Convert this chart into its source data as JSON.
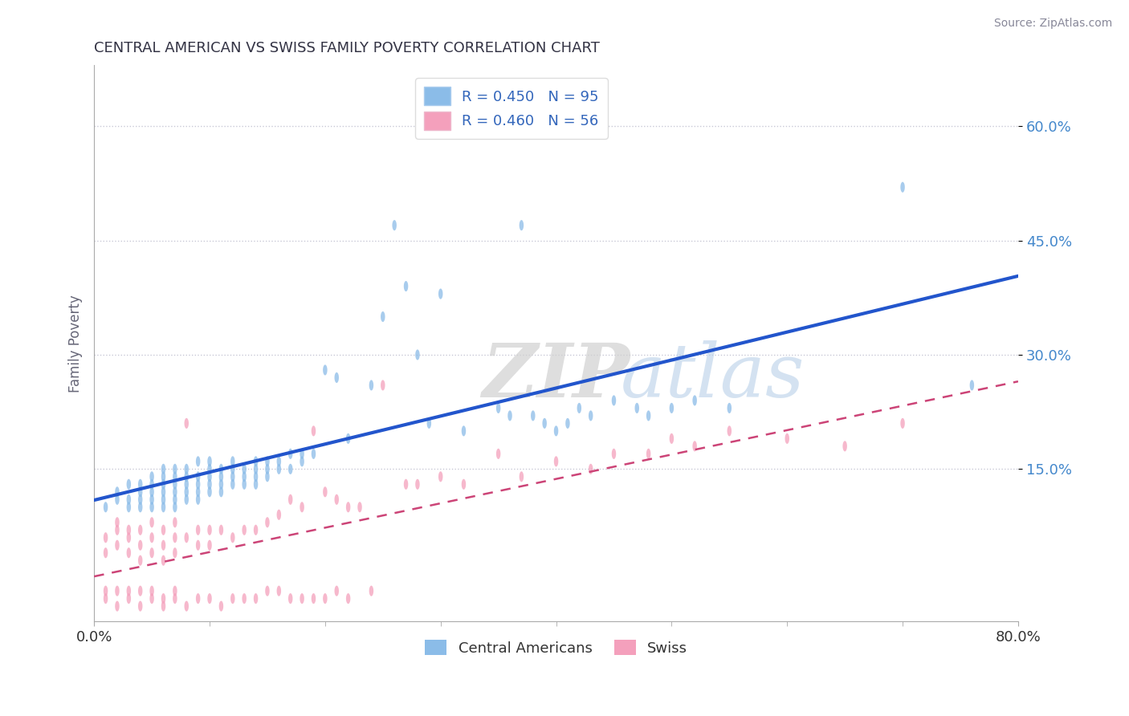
{
  "title": "CENTRAL AMERICAN VS SWISS FAMILY POVERTY CORRELATION CHART",
  "source": "Source: ZipAtlas.com",
  "ylabel": "Family Poverty",
  "xlim": [
    0.0,
    0.8
  ],
  "ylim": [
    -0.05,
    0.68
  ],
  "ytick_positions": [
    0.15,
    0.3,
    0.45,
    0.6
  ],
  "ytick_labels": [
    "15.0%",
    "30.0%",
    "45.0%",
    "60.0%"
  ],
  "blue_color": "#8BBCE8",
  "pink_color": "#F4A0BC",
  "blue_line_color": "#2255CC",
  "pink_line_color": "#CC4477",
  "watermark": "ZIPatlas",
  "legend_labels_bottom": [
    "Central Americans",
    "Swiss"
  ],
  "blue_R": "0.450",
  "blue_N": "95",
  "pink_R": "0.460",
  "pink_N": "56",
  "grid_color": "#cccccc",
  "title_color": "#333344",
  "axis_label_color": "#666677",
  "blue_scatter_x": [
    0.01,
    0.02,
    0.02,
    0.03,
    0.03,
    0.03,
    0.04,
    0.04,
    0.04,
    0.04,
    0.05,
    0.05,
    0.05,
    0.05,
    0.05,
    0.06,
    0.06,
    0.06,
    0.06,
    0.06,
    0.06,
    0.07,
    0.07,
    0.07,
    0.07,
    0.07,
    0.07,
    0.08,
    0.08,
    0.08,
    0.08,
    0.08,
    0.09,
    0.09,
    0.09,
    0.09,
    0.09,
    0.1,
    0.1,
    0.1,
    0.1,
    0.1,
    0.11,
    0.11,
    0.11,
    0.11,
    0.12,
    0.12,
    0.12,
    0.12,
    0.13,
    0.13,
    0.13,
    0.14,
    0.14,
    0.14,
    0.14,
    0.15,
    0.15,
    0.15,
    0.16,
    0.16,
    0.17,
    0.17,
    0.18,
    0.18,
    0.19,
    0.2,
    0.21,
    0.22,
    0.24,
    0.25,
    0.26,
    0.27,
    0.28,
    0.29,
    0.3,
    0.32,
    0.35,
    0.36,
    0.37,
    0.38,
    0.39,
    0.4,
    0.41,
    0.42,
    0.43,
    0.45,
    0.47,
    0.48,
    0.5,
    0.52,
    0.55,
    0.7,
    0.76
  ],
  "blue_scatter_y": [
    0.1,
    0.11,
    0.12,
    0.1,
    0.11,
    0.13,
    0.1,
    0.11,
    0.12,
    0.13,
    0.1,
    0.11,
    0.12,
    0.13,
    0.14,
    0.1,
    0.11,
    0.12,
    0.13,
    0.14,
    0.15,
    0.1,
    0.11,
    0.12,
    0.13,
    0.14,
    0.15,
    0.11,
    0.12,
    0.13,
    0.14,
    0.15,
    0.11,
    0.12,
    0.13,
    0.14,
    0.16,
    0.12,
    0.13,
    0.14,
    0.15,
    0.16,
    0.12,
    0.13,
    0.14,
    0.15,
    0.13,
    0.14,
    0.15,
    0.16,
    0.13,
    0.14,
    0.15,
    0.13,
    0.14,
    0.15,
    0.16,
    0.14,
    0.15,
    0.16,
    0.15,
    0.16,
    0.15,
    0.17,
    0.16,
    0.17,
    0.17,
    0.28,
    0.27,
    0.19,
    0.26,
    0.35,
    0.47,
    0.39,
    0.3,
    0.21,
    0.38,
    0.2,
    0.23,
    0.22,
    0.47,
    0.22,
    0.21,
    0.2,
    0.21,
    0.23,
    0.22,
    0.24,
    0.23,
    0.22,
    0.23,
    0.24,
    0.23,
    0.52,
    0.26
  ],
  "pink_scatter_x": [
    0.01,
    0.01,
    0.02,
    0.02,
    0.02,
    0.03,
    0.03,
    0.03,
    0.04,
    0.04,
    0.04,
    0.05,
    0.05,
    0.05,
    0.06,
    0.06,
    0.06,
    0.07,
    0.07,
    0.07,
    0.08,
    0.08,
    0.09,
    0.09,
    0.1,
    0.1,
    0.11,
    0.12,
    0.13,
    0.14,
    0.15,
    0.16,
    0.17,
    0.18,
    0.19,
    0.2,
    0.21,
    0.22,
    0.23,
    0.25,
    0.27,
    0.28,
    0.3,
    0.32,
    0.35,
    0.37,
    0.4,
    0.43,
    0.45,
    0.48,
    0.5,
    0.52,
    0.55,
    0.6,
    0.65,
    0.7
  ],
  "pink_scatter_y": [
    0.04,
    0.06,
    0.05,
    0.07,
    0.08,
    0.04,
    0.06,
    0.07,
    0.03,
    0.05,
    0.07,
    0.04,
    0.06,
    0.08,
    0.03,
    0.05,
    0.07,
    0.04,
    0.06,
    0.08,
    0.21,
    0.06,
    0.05,
    0.07,
    0.05,
    0.07,
    0.07,
    0.06,
    0.07,
    0.07,
    0.08,
    0.09,
    0.11,
    0.1,
    0.2,
    0.12,
    0.11,
    0.1,
    0.1,
    0.26,
    0.13,
    0.13,
    0.14,
    0.13,
    0.17,
    0.14,
    0.16,
    0.15,
    0.17,
    0.17,
    0.19,
    0.18,
    0.2,
    0.19,
    0.18,
    0.21
  ],
  "pink_below_zero_x": [
    0.01,
    0.01,
    0.02,
    0.02,
    0.03,
    0.03,
    0.04,
    0.04,
    0.05,
    0.05,
    0.06,
    0.06,
    0.07,
    0.07,
    0.08,
    0.09,
    0.1,
    0.11,
    0.12,
    0.13,
    0.14,
    0.15,
    0.16,
    0.17,
    0.18,
    0.19,
    0.2,
    0.21,
    0.22,
    0.24
  ],
  "pink_below_zero_y": [
    -0.02,
    -0.01,
    -0.03,
    -0.01,
    -0.02,
    -0.01,
    -0.03,
    -0.01,
    -0.02,
    -0.01,
    -0.02,
    -0.03,
    -0.01,
    -0.02,
    -0.03,
    -0.02,
    -0.02,
    -0.03,
    -0.02,
    -0.02,
    -0.02,
    -0.01,
    -0.01,
    -0.02,
    -0.02,
    -0.02,
    -0.02,
    -0.01,
    -0.02,
    -0.01
  ]
}
